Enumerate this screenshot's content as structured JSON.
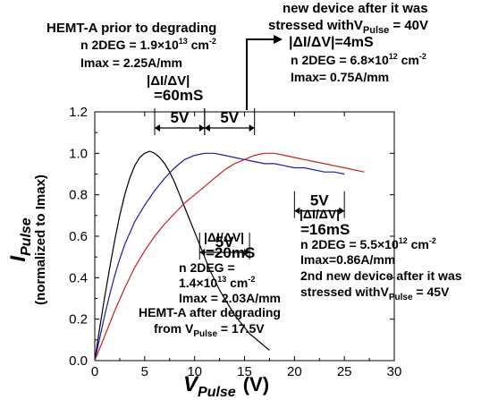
{
  "chart_data": {
    "type": "line",
    "xlabel": {
      "main": "V",
      "sub": "Pulse",
      "unit": "(V)"
    },
    "ylabel": {
      "main": "I",
      "sub": "Pulse",
      "line2": "(normalized to Imax)"
    },
    "xlim": [
      0,
      30
    ],
    "ylim": [
      0.0,
      1.2
    ],
    "x_ticks": [
      "0",
      "5",
      "10",
      "15",
      "20",
      "25",
      "30"
    ],
    "y_ticks": [
      "0.0",
      "0.2",
      "0.4",
      "0.6",
      "0.8",
      "1.0",
      "1.2"
    ],
    "grid": false,
    "series": [
      {
        "color": "#000000",
        "x": [
          0,
          0.5,
          1,
          1.5,
          2,
          2.5,
          3,
          3.5,
          4,
          4.5,
          5,
          5.5,
          6,
          6.5,
          7,
          7.5,
          8,
          8.5,
          9,
          9.5,
          10,
          10.5,
          11,
          11.5,
          12,
          12.5,
          13,
          13.5,
          14,
          14.5,
          15,
          15.5,
          16,
          16.5,
          17,
          17.5
        ],
        "y": [
          0,
          0.16,
          0.31,
          0.45,
          0.58,
          0.7,
          0.8,
          0.88,
          0.94,
          0.98,
          1.0,
          1.01,
          1.0,
          0.98,
          0.95,
          0.91,
          0.86,
          0.8,
          0.74,
          0.68,
          0.62,
          0.56,
          0.5,
          0.44,
          0.39,
          0.34,
          0.3,
          0.26,
          0.22,
          0.19,
          0.16,
          0.13,
          0.11,
          0.09,
          0.07,
          0.05
        ]
      },
      {
        "color": "#1a1aa6",
        "x": [
          0,
          0.5,
          1,
          1.5,
          2,
          2.5,
          3,
          4,
          5,
          6,
          7,
          8,
          9,
          10,
          11,
          12,
          13,
          14,
          15,
          16,
          17,
          18,
          19,
          20,
          21,
          22,
          23,
          24,
          25
        ],
        "y": [
          0,
          0.11,
          0.22,
          0.32,
          0.41,
          0.49,
          0.56,
          0.67,
          0.75,
          0.82,
          0.88,
          0.93,
          0.97,
          0.99,
          1.0,
          1.0,
          0.99,
          0.98,
          0.97,
          0.96,
          0.95,
          0.95,
          0.94,
          0.93,
          0.93,
          0.92,
          0.91,
          0.91,
          0.9
        ]
      },
      {
        "color": "#c81e1e",
        "x": [
          0,
          1,
          2,
          3,
          4,
          5,
          6,
          7,
          8,
          9,
          10,
          11,
          12,
          13,
          14,
          15,
          16,
          17,
          18,
          19,
          20,
          21,
          22,
          23,
          24,
          25,
          26,
          27
        ],
        "y": [
          0,
          0.12,
          0.24,
          0.35,
          0.45,
          0.53,
          0.6,
          0.66,
          0.71,
          0.76,
          0.8,
          0.84,
          0.88,
          0.92,
          0.95,
          0.97,
          0.99,
          1.0,
          1.0,
          0.99,
          0.98,
          0.97,
          0.96,
          0.95,
          0.94,
          0.93,
          0.92,
          0.91
        ]
      }
    ],
    "brackets": [
      {
        "label": "5V",
        "x_start": 6,
        "x_end": 11,
        "y": 1.2
      },
      {
        "label": "5V",
        "x_start": 11,
        "x_end": 16,
        "y": 1.2
      },
      {
        "label": "5V",
        "x_start": 10.5,
        "x_end": 15.5,
        "y": 0.6
      },
      {
        "label": "5V",
        "x_start": 20,
        "x_end": 25,
        "y": 0.8
      }
    ],
    "annotations": {
      "hemt_prior": {
        "title": "HEMT-A prior to degrading",
        "n2deg": "n 2DEG = 1.9×10",
        "n2deg_exp": "13",
        "n2deg_unit": " cm",
        "n2deg_unit_exp": "-2",
        "imax": "Imax = 2.25A/mm",
        "di": "|ΔI/ΔV|",
        "di_val": "=60mS"
      },
      "new_device": {
        "title1": "new device after it was",
        "title2": "stressed with",
        "vpulse": "V",
        "vpulse_sub": "Pulse",
        "vpulse_val": " = 40V",
        "di": "|ΔI/ΔV|=4mS",
        "n2deg": "n 2DEG = 6.8×10",
        "n2deg_exp": "12",
        "n2deg_unit": " cm",
        "n2deg_unit_exp": "-2",
        "imax": "Imax= 0.75A/mm"
      },
      "hemt_after": {
        "di": "|ΔI/ΔV|",
        "di_val": "=20mS",
        "n2deg": "n 2DEG =",
        "n2deg_val": "1.4×10",
        "n2deg_exp": "13",
        "n2deg_unit": " cm",
        "n2deg_unit_exp": "-2",
        "imax": "Imax = 2.03A/mm",
        "title1": "HEMT-A after degrading",
        "title2": "from V",
        "title2_sub": "Pulse",
        "title2_val": " = 17.5V"
      },
      "second_device": {
        "di": "|ΔI/ΔV|",
        "di_val": "=16mS",
        "n2deg": "n 2DEG = 5.5×10",
        "n2deg_exp": "12",
        "n2deg_unit": " cm",
        "n2deg_unit_exp": "-2",
        "imax": "Imax=0.86A/mm",
        "title1": "2nd new device after it was",
        "title2": "stressed with",
        "vpulse": "V",
        "vpulse_sub": "Pulse",
        "vpulse_val": " = 45V"
      }
    }
  }
}
